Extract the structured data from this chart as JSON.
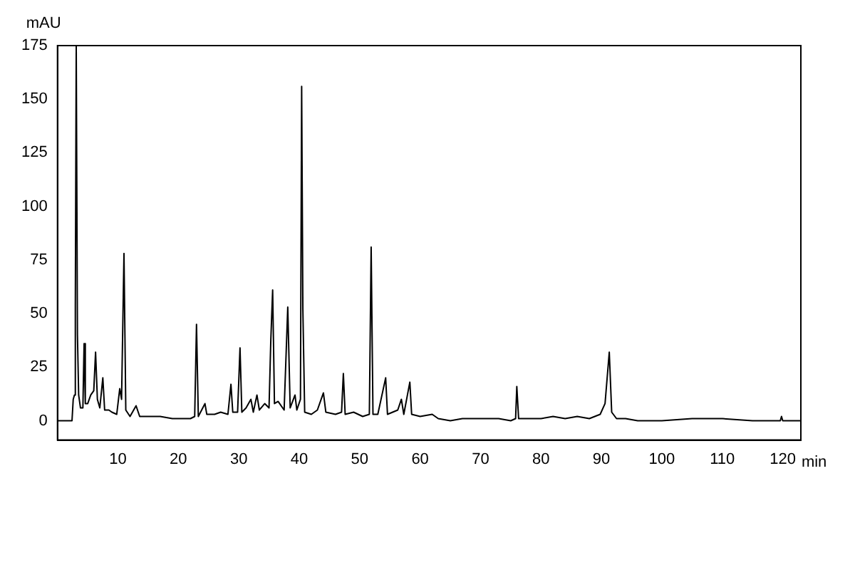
{
  "chart_data": {
    "type": "line",
    "xlabel": "min",
    "ylabel": "mAU",
    "xlim": [
      0,
      123
    ],
    "ylim": [
      -9,
      175
    ],
    "xticks": [
      10,
      20,
      30,
      40,
      50,
      60,
      70,
      80,
      90,
      100,
      110,
      120
    ],
    "yticks": [
      0,
      25,
      50,
      75,
      100,
      125,
      150,
      175
    ],
    "marker": "none",
    "line_style": "solid",
    "x": [
      0,
      2.4,
      2.6,
      2.8,
      2.95,
      3.1,
      3.3,
      3.5,
      3.8,
      4.2,
      4.4,
      4.6,
      5.0,
      5.5,
      6.0,
      6.3,
      6.6,
      7.0,
      7.5,
      7.8,
      8.5,
      9.0,
      9.8,
      10.3,
      10.6,
      11.0,
      11.3,
      12.0,
      13.0,
      13.6,
      15,
      17,
      19,
      22,
      22.7,
      23.0,
      23.3,
      24.4,
      24.7,
      26,
      27,
      28.2,
      28.7,
      29.0,
      29.8,
      30.2,
      30.5,
      31.2,
      32.0,
      32.4,
      33.0,
      33.4,
      34.3,
      35.0,
      35.3,
      35.6,
      35.9,
      36.5,
      37.5,
      38.1,
      38.5,
      39.3,
      39.6,
      40.2,
      40.4,
      40.6,
      40.9,
      42,
      43,
      44.0,
      44.4,
      46,
      47.0,
      47.3,
      47.6,
      49,
      50.5,
      51.6,
      51.9,
      52.2,
      53,
      54.3,
      54.6,
      56.3,
      56.9,
      57.3,
      58.3,
      58.6,
      60,
      62,
      63,
      65,
      67,
      70,
      73,
      75,
      75.8,
      76.0,
      76.3,
      78,
      80,
      82,
      84,
      86,
      88,
      89.8,
      90.6,
      91.3,
      91.7,
      92.5,
      94,
      96,
      100,
      105,
      110,
      115,
      119.6,
      119.8,
      120.0,
      123
    ],
    "series": [
      {
        "color": "#000000",
        "values": [
          0,
          0,
          10,
          12,
          54,
          175,
          40,
          12,
          6,
          6,
          36,
          8,
          8,
          12,
          14,
          32,
          10,
          6,
          20,
          5,
          5,
          4,
          3,
          15,
          10,
          78,
          5,
          2,
          7,
          2,
          2,
          2,
          1,
          1,
          2,
          45,
          2,
          8,
          3,
          3,
          4,
          3,
          17,
          4,
          4,
          34,
          4,
          6,
          10,
          4,
          12,
          5,
          8,
          6,
          38,
          61,
          8,
          9,
          5,
          53,
          6,
          12,
          5,
          10,
          156,
          52,
          4,
          3,
          5,
          13,
          4,
          3,
          4,
          22,
          3,
          4,
          2,
          3,
          81,
          3,
          3,
          20,
          3,
          5,
          10,
          3,
          18,
          3,
          2,
          3,
          1,
          0,
          1,
          1,
          1,
          0,
          1,
          16,
          1,
          1,
          1,
          2,
          1,
          2,
          1,
          3,
          8,
          32,
          4,
          1,
          1,
          0,
          0,
          1,
          1,
          0,
          0,
          2,
          0,
          0
        ]
      }
    ]
  }
}
